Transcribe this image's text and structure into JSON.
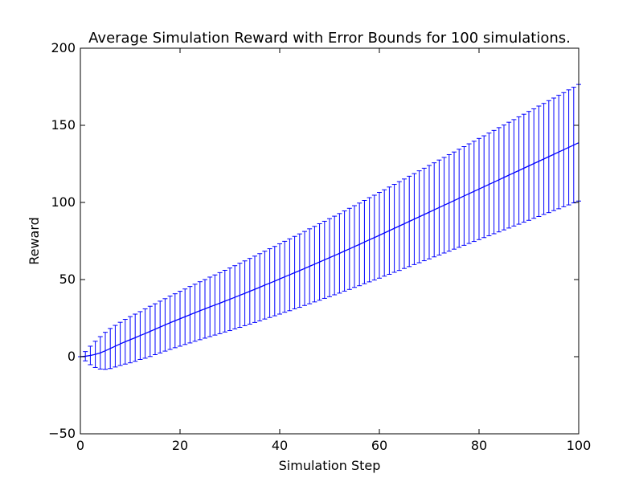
{
  "chart_data": {
    "type": "line",
    "title": "Average Simulation Reward with Error Bounds for 100 simulations.",
    "xlabel": "Simulation Step",
    "ylabel": "Reward",
    "xlim": [
      0,
      100
    ],
    "ylim": [
      -50,
      200
    ],
    "xticks": [
      0,
      20,
      40,
      60,
      80,
      100
    ],
    "yticks": [
      -50,
      0,
      50,
      100,
      150,
      200
    ],
    "xtick_labels": [
      "0",
      "20",
      "40",
      "60",
      "80",
      "100"
    ],
    "ytick_labels": [
      "−50",
      "0",
      "50",
      "100",
      "150",
      "200"
    ],
    "grid": false,
    "legend": "none",
    "series": [
      {
        "color": "#0000ff",
        "x": [
          0,
          1,
          2,
          3,
          4,
          5,
          6,
          7,
          8,
          9,
          10,
          11,
          12,
          13,
          14,
          15,
          16,
          17,
          18,
          19,
          20,
          21,
          22,
          23,
          24,
          25,
          26,
          27,
          28,
          29,
          30,
          31,
          32,
          33,
          34,
          35,
          36,
          37,
          38,
          39,
          40,
          41,
          42,
          43,
          44,
          45,
          46,
          47,
          48,
          49,
          50,
          51,
          52,
          53,
          54,
          55,
          56,
          57,
          58,
          59,
          60,
          61,
          62,
          63,
          64,
          65,
          66,
          67,
          68,
          69,
          70,
          71,
          72,
          73,
          74,
          75,
          76,
          77,
          78,
          79,
          80,
          81,
          82,
          83,
          84,
          85,
          86,
          87,
          88,
          89,
          90,
          91,
          92,
          93,
          94,
          95,
          96,
          97,
          98,
          99,
          100
        ],
        "y": [
          0.0,
          0.3,
          0.8,
          1.5,
          2.5,
          3.8,
          5.3,
          6.8,
          8.3,
          9.7,
          11.0,
          12.3,
          13.7,
          15.0,
          16.4,
          17.8,
          19.2,
          20.6,
          22.0,
          23.3,
          24.6,
          25.9,
          27.2,
          28.5,
          29.8,
          31.0,
          32.3,
          33.5,
          34.7,
          36.0,
          37.2,
          38.5,
          39.8,
          41.1,
          42.4,
          43.7,
          45.0,
          46.4,
          47.7,
          49.0,
          50.4,
          51.8,
          53.1,
          54.5,
          55.8,
          57.2,
          58.6,
          60.0,
          61.4,
          62.8,
          64.2,
          65.6,
          67.0,
          68.5,
          69.9,
          71.4,
          72.8,
          74.3,
          75.8,
          77.2,
          78.7,
          80.2,
          81.7,
          83.2,
          84.7,
          86.2,
          87.7,
          89.2,
          90.7,
          92.2,
          93.7,
          95.2,
          96.7,
          98.2,
          99.7,
          101.2,
          102.7,
          104.2,
          105.7,
          107.2,
          108.7,
          110.2,
          111.7,
          113.2,
          114.7,
          116.2,
          117.7,
          119.2,
          120.7,
          122.2,
          123.7,
          125.2,
          126.7,
          128.2,
          129.7,
          131.2,
          132.7,
          134.2,
          135.7,
          137.2,
          138.7
        ],
        "error": [
          0.0,
          3.0,
          6.0,
          8.5,
          10.5,
          12.0,
          13.0,
          13.5,
          14.0,
          14.5,
          15.0,
          15.3,
          15.5,
          16.0,
          16.3,
          16.5,
          16.8,
          17.0,
          17.3,
          17.5,
          17.8,
          18.0,
          18.3,
          18.5,
          18.8,
          19.0,
          19.3,
          19.5,
          19.8,
          20.0,
          20.3,
          20.5,
          20.8,
          21.0,
          21.3,
          21.5,
          21.8,
          22.0,
          22.3,
          22.5,
          22.8,
          23.0,
          23.3,
          23.5,
          23.8,
          24.0,
          24.3,
          24.5,
          24.8,
          25.0,
          25.3,
          25.5,
          25.8,
          26.0,
          26.3,
          26.5,
          26.8,
          27.0,
          27.3,
          27.5,
          27.8,
          28.0,
          28.3,
          28.5,
          28.8,
          29.0,
          29.3,
          29.5,
          29.8,
          30.0,
          30.3,
          30.5,
          30.8,
          31.0,
          31.3,
          31.5,
          31.8,
          32.0,
          32.3,
          32.5,
          32.8,
          33.0,
          33.3,
          33.5,
          33.8,
          34.0,
          34.3,
          34.5,
          34.8,
          35.0,
          35.3,
          35.5,
          35.8,
          36.0,
          36.3,
          36.5,
          36.8,
          37.0,
          37.3,
          37.5,
          37.8
        ]
      }
    ]
  }
}
